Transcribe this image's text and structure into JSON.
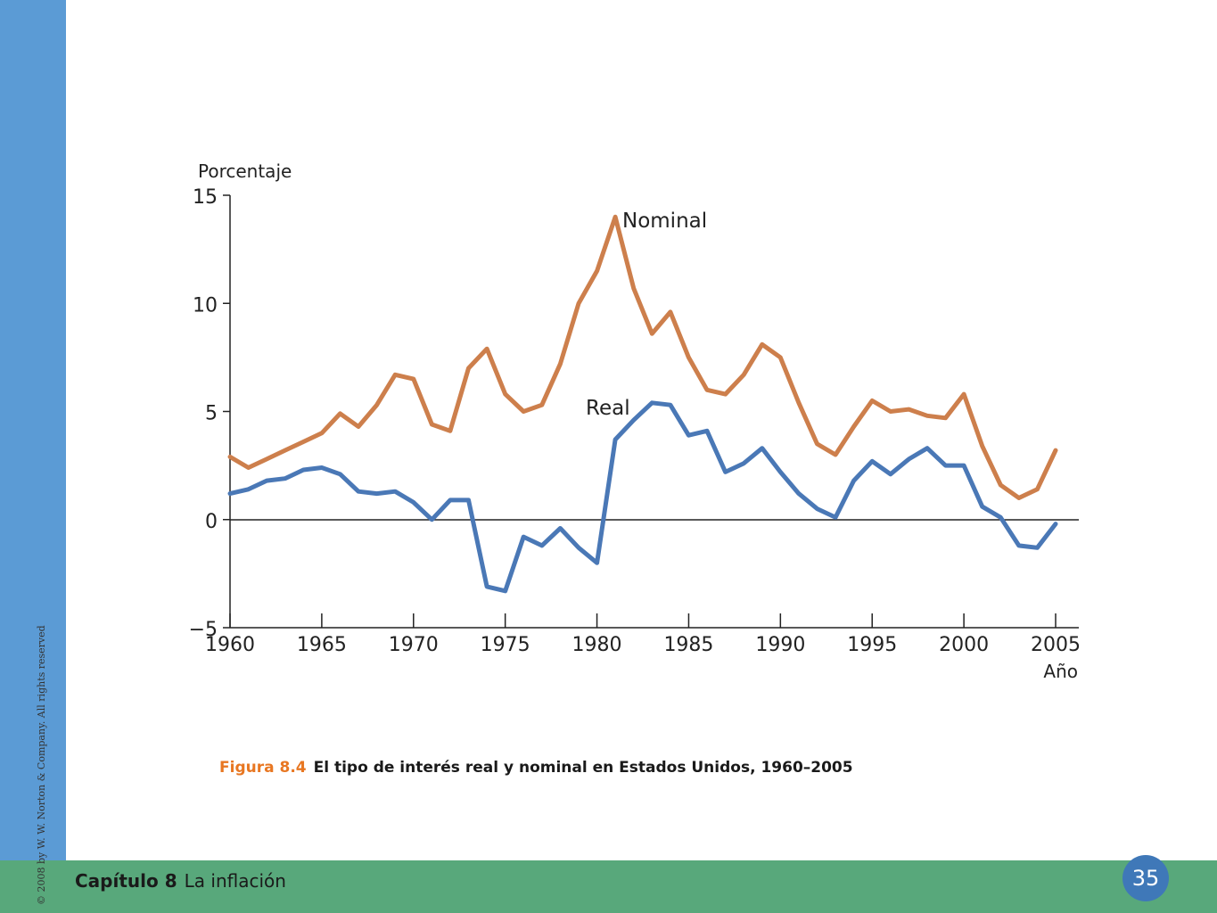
{
  "footer": {
    "copyright": "© 2008 by W. W. Norton & Company. All rights reserved",
    "chapter_number": "Capítulo 8",
    "chapter_title": "La inflación",
    "page_number": "35"
  },
  "caption": {
    "figure_label": "Figura 8.4",
    "text": "El tipo de interés real y nominal en Estados Unidos, 1960–2005"
  },
  "colors": {
    "nominal": "#cd7f4c",
    "real": "#4a78b6",
    "axis": "#222222",
    "side_bar": "#5b9bd5",
    "bottom_bar": "#58a87b",
    "caption_accent": "#e87722"
  },
  "chart_data": {
    "type": "line",
    "ylabel": "Porcentaje",
    "xlabel": "Año",
    "xlim": [
      1960,
      2005
    ],
    "ylim": [
      -5,
      15
    ],
    "x_ticks": [
      "1960",
      "1965",
      "1970",
      "1975",
      "1980",
      "1985",
      "1990",
      "1995",
      "2000",
      "2005"
    ],
    "y_ticks": [
      "15",
      "10",
      "5",
      "0",
      "−5"
    ],
    "y_tick_values": [
      15,
      10,
      5,
      0,
      -5
    ],
    "grid": false,
    "x": [
      1960,
      1961,
      1962,
      1963,
      1964,
      1965,
      1966,
      1967,
      1968,
      1969,
      1970,
      1971,
      1972,
      1973,
      1974,
      1975,
      1976,
      1977,
      1978,
      1979,
      1980,
      1981,
      1982,
      1983,
      1984,
      1985,
      1986,
      1987,
      1988,
      1989,
      1990,
      1991,
      1992,
      1993,
      1994,
      1995,
      1996,
      1997,
      1998,
      1999,
      2000,
      2001,
      2002,
      2003,
      2004,
      2005
    ],
    "series": [
      {
        "name": "Nominal",
        "values": [
          2.9,
          2.4,
          2.8,
          3.2,
          3.6,
          4.0,
          4.9,
          4.3,
          5.3,
          6.7,
          6.5,
          4.4,
          4.1,
          7.0,
          7.9,
          5.8,
          5.0,
          5.3,
          7.2,
          10.0,
          11.5,
          14.0,
          10.7,
          8.6,
          9.6,
          7.5,
          6.0,
          5.8,
          6.7,
          8.1,
          7.5,
          5.4,
          3.5,
          3.0,
          4.3,
          5.5,
          5.0,
          5.1,
          4.8,
          4.7,
          5.8,
          3.4,
          1.6,
          1.0,
          1.4,
          3.2
        ]
      },
      {
        "name": "Real",
        "values": [
          1.2,
          1.4,
          1.8,
          1.9,
          2.3,
          2.4,
          2.1,
          1.3,
          1.2,
          1.3,
          0.8,
          0.0,
          0.9,
          0.9,
          -3.1,
          -3.3,
          -0.8,
          -1.2,
          -0.4,
          -1.3,
          -2.0,
          3.7,
          4.6,
          5.4,
          5.3,
          3.9,
          4.1,
          2.2,
          2.6,
          3.3,
          2.2,
          1.2,
          0.5,
          0.1,
          1.8,
          2.7,
          2.1,
          2.8,
          3.3,
          2.5,
          2.5,
          0.6,
          0.1,
          -1.2,
          -1.3,
          -0.2
        ]
      }
    ]
  }
}
